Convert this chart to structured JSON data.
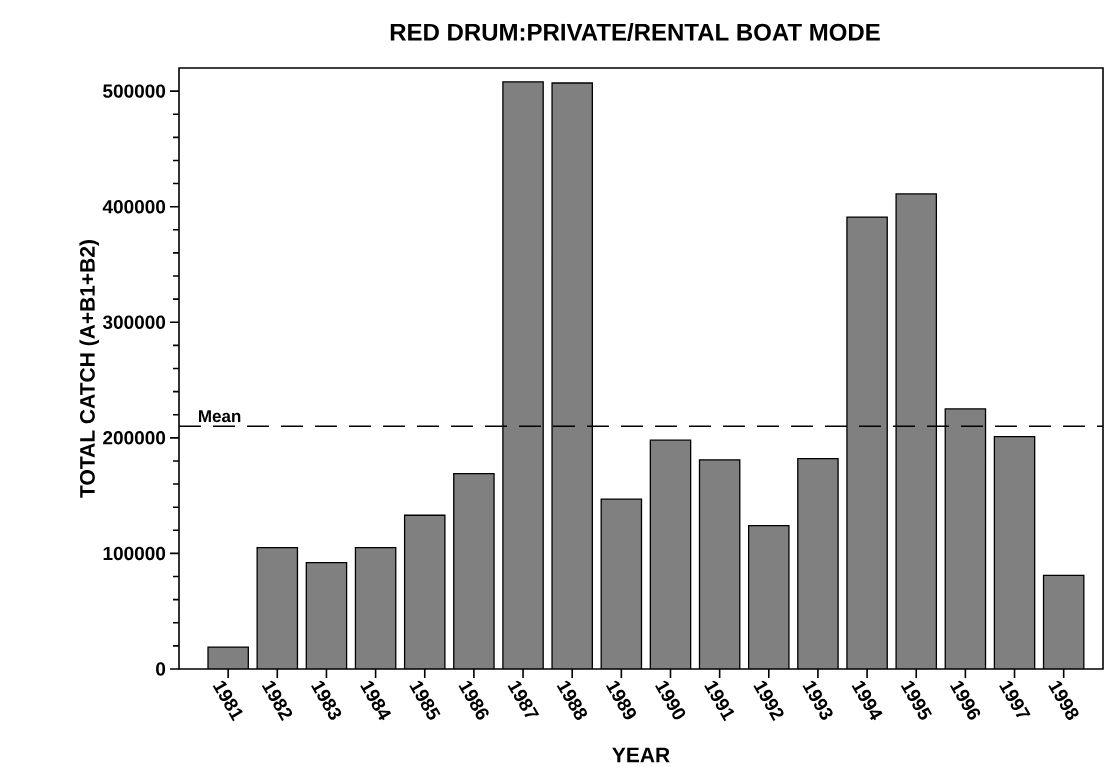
{
  "chart_data": {
    "type": "bar",
    "title": "RED DRUM:PRIVATE/RENTAL BOAT MODE",
    "xlabel": "YEAR",
    "ylabel": "TOTAL CATCH (A+B1+B2)",
    "categories": [
      "1981",
      "1982",
      "1983",
      "1984",
      "1985",
      "1986",
      "1987",
      "1988",
      "1989",
      "1990",
      "1991",
      "1992",
      "1993",
      "1994",
      "1995",
      "1996",
      "1997",
      "1998"
    ],
    "values": [
      19000,
      105000,
      92000,
      105000,
      133000,
      169000,
      508000,
      507000,
      147000,
      198000,
      181000,
      124000,
      182000,
      391000,
      411000,
      225000,
      201000,
      81000
    ],
    "color": "#808080",
    "ylim": [
      0,
      520000
    ],
    "yticks": [
      0,
      100000,
      200000,
      300000,
      400000,
      500000
    ],
    "ref_lines": [
      {
        "axis": "y",
        "value": 210000,
        "label": "Mean",
        "line_style": "dashed"
      }
    ],
    "grid": false
  }
}
